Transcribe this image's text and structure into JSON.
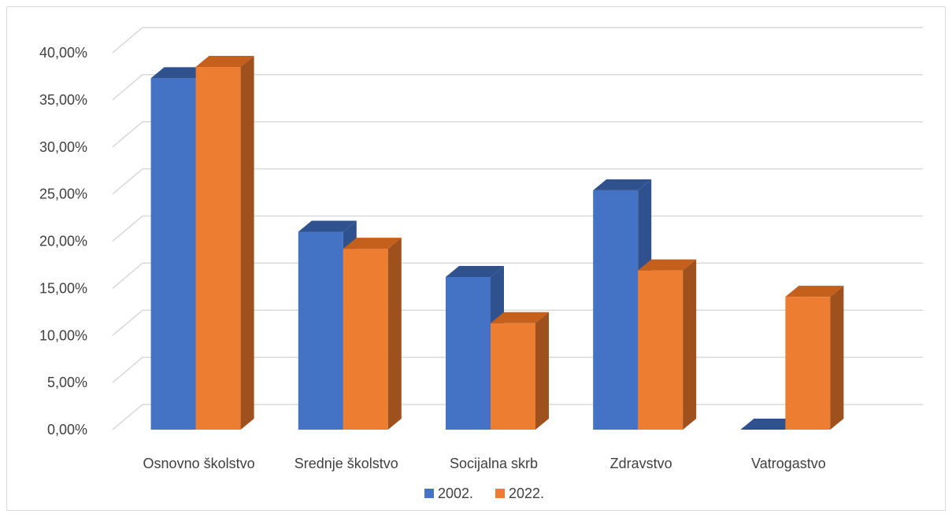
{
  "chart_data": {
    "type": "bar",
    "style": "3d-clustered-column",
    "categories": [
      "Osnovno školstvo",
      "Srednje školstvo",
      "Socijalna skrb",
      "Zdravstvo",
      "Vatrogastvo"
    ],
    "series": [
      {
        "name": "2002.",
        "values": [
          37.3,
          21.0,
          16.2,
          25.4,
          0.0
        ],
        "color": "#4472c4",
        "side_color": "#2f528f",
        "top_color": "#2f528f"
      },
      {
        "name": "2022.",
        "values": [
          38.5,
          19.2,
          11.3,
          16.9,
          14.1
        ],
        "color": "#ed7d31",
        "side_color": "#9e501d",
        "top_color": "#c45f1c"
      }
    ],
    "y_ticks": [
      "0,00%",
      "5,00%",
      "10,00%",
      "15,00%",
      "20,00%",
      "25,00%",
      "30,00%",
      "35,00%",
      "40,00%"
    ],
    "ylim": [
      0,
      40
    ],
    "grid": true,
    "legend_position": "bottom",
    "title": "",
    "xlabel": "",
    "ylabel": ""
  }
}
